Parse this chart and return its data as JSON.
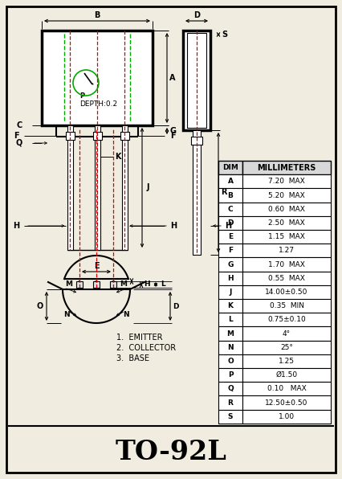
{
  "title": "TO-92L",
  "bg_color": "#f0ece0",
  "table_data": {
    "headers": [
      "DIM",
      "MILLIMETERS"
    ],
    "rows": [
      [
        "A",
        "7.20  MAX"
      ],
      [
        "B",
        "5.20  MAX"
      ],
      [
        "C",
        "0.60  MAX"
      ],
      [
        "D",
        "2.50  MAX"
      ],
      [
        "E",
        "1.15  MAX"
      ],
      [
        "F",
        "1.27"
      ],
      [
        "G",
        "1.70  MAX"
      ],
      [
        "H",
        "0.55  MAX"
      ],
      [
        "J",
        "14.00±0.50"
      ],
      [
        "K",
        "0.35  MIN"
      ],
      [
        "L",
        "0.75±0.10"
      ],
      [
        "M",
        "4°"
      ],
      [
        "N",
        "25°"
      ],
      [
        "O",
        "1.25"
      ],
      [
        "P",
        "Ø1.50"
      ],
      [
        "Q",
        "0.10   MAX"
      ],
      [
        "R",
        "12.50±0.50"
      ],
      [
        "S",
        "1.00"
      ]
    ]
  },
  "labels": {
    "emitter": "1.  EMITTER",
    "collector": "2.  COLLECTOR",
    "base": "3.  BASE",
    "depth": "DEPTH:0.2",
    "p_label": "P"
  },
  "body_color": "#ffffff",
  "body_border": "#000000",
  "lead_red": "#dd0000",
  "green_dash": "#00aa00"
}
